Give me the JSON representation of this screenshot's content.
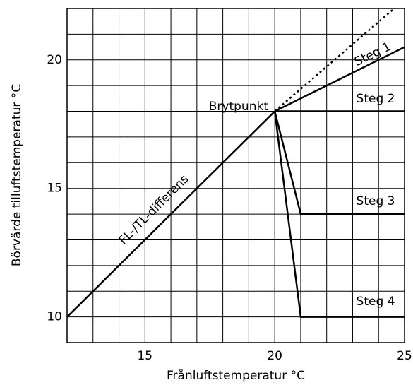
{
  "chart_data": {
    "type": "line",
    "xlabel": "Frånluftstemperatur °C",
    "ylabel": "Börvärde tilluftstemperatur  °C",
    "xlim": [
      12,
      25
    ],
    "ylim": [
      9,
      22
    ],
    "xticks": [
      15,
      20,
      25
    ],
    "yticks": [
      10,
      15,
      20
    ],
    "xminor": [
      13,
      14,
      16,
      17,
      18,
      19,
      21,
      22,
      23,
      24
    ],
    "yminor": [
      11,
      12,
      13,
      14,
      16,
      17,
      18,
      19,
      21
    ],
    "grid": true,
    "annotation": "Brytpunkt",
    "series": [
      {
        "name": "FL-/TL-differens",
        "color": "#000",
        "x": [
          12,
          20
        ],
        "values": [
          10,
          18
        ]
      },
      {
        "color": "#000",
        "dashed": true,
        "x": [
          20,
          24.6
        ],
        "values": [
          18,
          22
        ]
      },
      {
        "name": "Steg 1",
        "color": "#000",
        "x": [
          20,
          25
        ],
        "values": [
          18,
          20.5
        ]
      },
      {
        "name": "Steg 2",
        "color": "#000",
        "x": [
          20,
          25
        ],
        "values": [
          18,
          18
        ]
      },
      {
        "name": "Steg 3",
        "color": "#000",
        "x": [
          20,
          21,
          25
        ],
        "values": [
          18,
          14,
          14
        ]
      },
      {
        "name": "Steg 4",
        "color": "#000",
        "x": [
          20,
          21,
          25
        ],
        "values": [
          18,
          10,
          10
        ]
      }
    ]
  }
}
